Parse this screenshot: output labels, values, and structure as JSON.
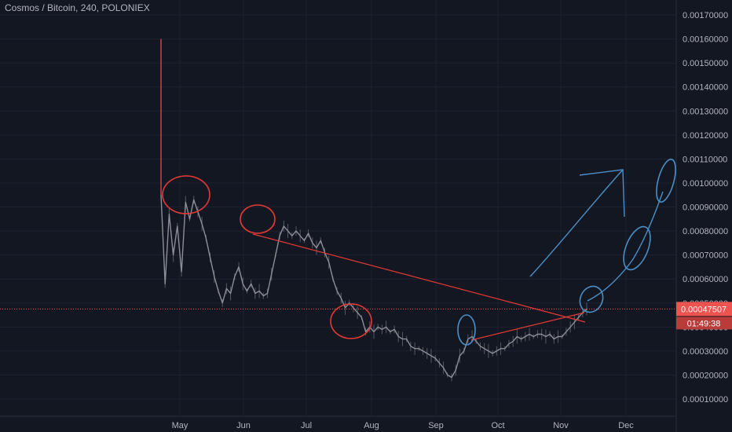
{
  "header": {
    "title": "Cosmos / Bitcoin, 240, POLONIEX"
  },
  "chart_data": {
    "type": "line",
    "title": "Cosmos / Bitcoin, 240, POLONIEX",
    "xlabel": "",
    "ylabel": "",
    "x_tick_labels": [
      "May",
      "Jun",
      "Jul",
      "Aug",
      "Sep",
      "Oct",
      "Nov",
      "Dec"
    ],
    "y_tick_labels": [
      "0.00170000",
      "0.00160000",
      "0.00150000",
      "0.00140000",
      "0.00130000",
      "0.00120000",
      "0.00110000",
      "0.00100000",
      "0.00090000",
      "0.00080000",
      "0.00070000",
      "0.00060000",
      "0.00050000",
      "0.00040000",
      "0.00030000",
      "0.00020000",
      "0.00010000"
    ],
    "ylim": [
      4e-05,
      0.00178
    ],
    "grid": true,
    "series": [
      {
        "values": [
          0.00095,
          0.00058,
          0.00087,
          0.0007,
          0.00082,
          0.00063,
          0.00092,
          0.00085,
          0.00093,
          0.00088,
          0.00083,
          0.00077,
          0.00069,
          0.00061,
          0.00055,
          0.0005,
          0.00056,
          0.00054,
          0.00061,
          0.00065,
          0.00058,
          0.00055,
          0.00058,
          0.00054,
          0.00055,
          0.00053,
          0.00054,
          0.00062,
          0.0007,
          0.00078,
          0.00082,
          0.0008,
          0.00078,
          0.0008,
          0.00078,
          0.00076,
          0.00079,
          0.00075,
          0.00073,
          0.00076,
          0.00071,
          0.00067,
          0.0006,
          0.00055,
          0.00052,
          0.00048,
          0.0005,
          0.00048,
          0.00046,
          0.00044,
          0.00038,
          0.0004,
          0.00038,
          0.0004,
          0.00039,
          0.0004,
          0.00038,
          0.00039,
          0.00036,
          0.00035,
          0.00035,
          0.00032,
          0.00031,
          0.00031,
          0.0003,
          0.00029,
          0.00028,
          0.00027,
          0.00025,
          0.00023,
          0.0002,
          0.00019,
          0.00022,
          0.00028,
          0.0003,
          0.00035,
          0.00036,
          0.00034,
          0.00032,
          0.00031,
          0.0003,
          0.00029,
          0.0003,
          0.00031,
          0.00031,
          0.00033,
          0.00034,
          0.00036,
          0.00035,
          0.00036,
          0.00037,
          0.00036,
          0.00037,
          0.00037,
          0.00036,
          0.00037,
          0.00035,
          0.00036,
          0.00036,
          0.00038,
          0.0004,
          0.00042,
          0.00044,
          0.00046,
          0.00047507
        ],
        "spike_high": 0.0016,
        "color": "#8d8f95"
      }
    ],
    "current_price": {
      "label": "0.00047507",
      "value": 0.00047507,
      "countdown": "01:49:38",
      "color": "#ef5350"
    },
    "annotations": [
      {
        "type": "trendline",
        "color": "#e53935"
      },
      {
        "type": "trendline",
        "color": "#e53935"
      },
      {
        "type": "circle",
        "color": "#e53935"
      },
      {
        "type": "circle",
        "color": "#e53935"
      },
      {
        "type": "circle",
        "color": "#e53935"
      },
      {
        "type": "circle",
        "color": "#4a90c8"
      },
      {
        "type": "circle",
        "color": "#4a90c8"
      },
      {
        "type": "circle",
        "color": "#4a90c8"
      },
      {
        "type": "circle",
        "color": "#4a90c8"
      },
      {
        "type": "arrow",
        "color": "#4a90c8"
      },
      {
        "type": "curve",
        "color": "#4a90c8"
      }
    ],
    "colors": {
      "background": "#131722",
      "grid": "#1e2230",
      "text": "#b2b5be",
      "price_line": "#ef5350"
    }
  }
}
